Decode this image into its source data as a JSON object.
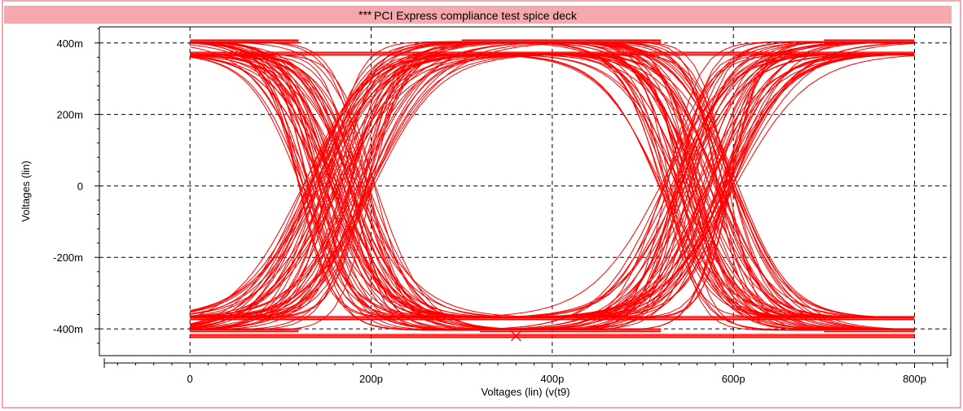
{
  "window": {
    "title": "PCI Express compliance test spice deck",
    "title_marker": "***"
  },
  "colors": {
    "title_bar": "#f5a8ad",
    "trace": "#ff0000",
    "grid": "#000000",
    "frame": "#000000",
    "window_border": "#f5a8ad"
  },
  "chart_data": {
    "type": "line",
    "subtype": "eye-diagram",
    "title": "PCI Express compliance test spice deck",
    "xlabel": "Voltages (lin) (v(t9)",
    "ylabel": "Voltages (lin)",
    "xlim": [
      -1e-10,
      8.4e-10
    ],
    "ylim": [
      -0.475,
      0.445
    ],
    "x_ticks": [
      0,
      2e-10,
      4e-10,
      6e-10,
      8e-10
    ],
    "x_tick_labels": [
      "0",
      "200p",
      "400p",
      "600p",
      "800p"
    ],
    "y_ticks": [
      0.4,
      0.2,
      0,
      -0.2,
      -0.4
    ],
    "y_tick_labels": [
      "400m",
      "200m",
      "0",
      "-200m",
      "-400m"
    ],
    "grid": true,
    "grid_style": "dashed",
    "unit_interval_s": 4e-10,
    "high_levels_V": [
      0.404,
      0.37
    ],
    "low_levels_V": [
      -0.404,
      -0.37,
      -0.42
    ],
    "crossing_times_s": [
      1.25e-10,
      1.9e-10,
      5.25e-10,
      5.9e-10
    ],
    "transition_center_range_s": [
      [
        1.2e-10,
        2.05e-10
      ],
      [
        5.2e-10,
        6.05e-10
      ]
    ],
    "marker": {
      "symbol": "x",
      "x": 3.6e-10,
      "y": -0.42
    }
  }
}
